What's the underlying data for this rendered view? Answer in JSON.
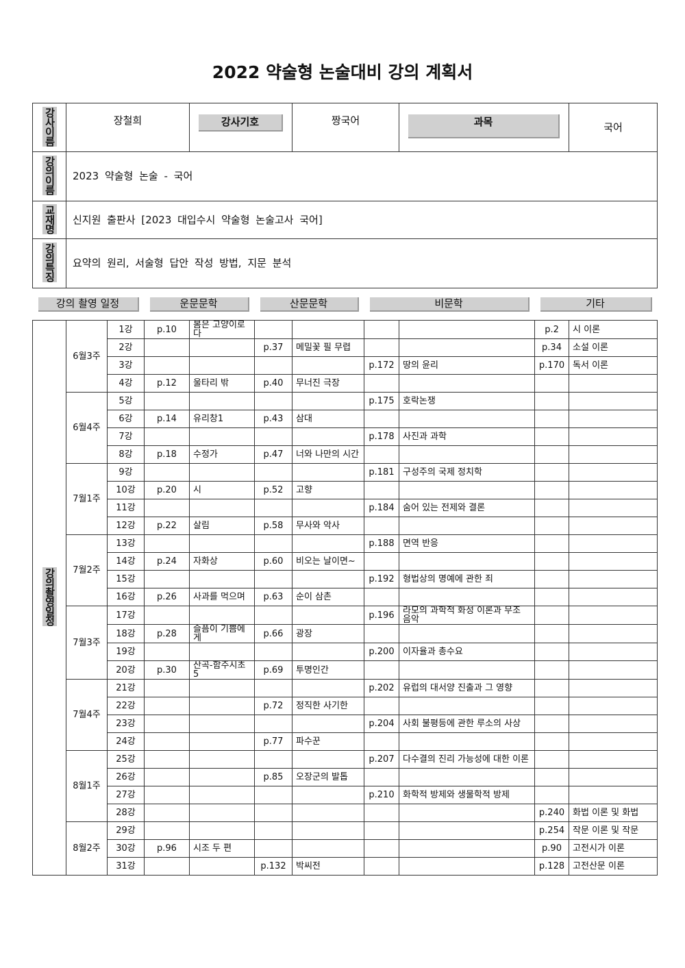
{
  "title": "2022 약술형 논술대비 강의 계획서",
  "info": {
    "instructor_label": "강사이름",
    "instructor": "장철희",
    "code_label": "강사기호",
    "code": "짱국어",
    "subject_label": "과목",
    "subject": "국어",
    "course_label": "강의이름",
    "course": "2023 약술형 논술 - 국어",
    "textbook_label": "교재명",
    "textbook": "신지원 출판사 [2023 대입수시 약술형 논술고사 국어]",
    "features_label": "강의특징",
    "features": "요약의 원리, 서술형 답안 작성 방법, 지문 분석"
  },
  "schedule": {
    "side_label": "강의촬영일정",
    "headers": [
      "강의 촬영 일정",
      "운문문학",
      "산문문학",
      "비문학",
      "기타"
    ],
    "weeks": [
      {
        "label": "6월3주",
        "lectures": [
          [
            "1강",
            "p.10",
            "봄은 고양이로다",
            null,
            null,
            null,
            null,
            "p.2",
            "시 이론"
          ],
          [
            "2강",
            null,
            null,
            "p.37",
            "메밀꽃 필 무렵",
            null,
            null,
            "p.34",
            "소설 이론"
          ],
          [
            "3강",
            null,
            null,
            null,
            null,
            "p.172",
            "땅의 윤리",
            "p.170",
            "독서 이론"
          ],
          [
            "4강",
            "p.12",
            "울타리 밖",
            "p.40",
            "무너진 극장",
            null,
            null,
            null,
            null
          ]
        ]
      },
      {
        "label": "6월4주",
        "lectures": [
          [
            "5강",
            null,
            null,
            null,
            null,
            "p.175",
            "호락논쟁",
            null,
            null
          ],
          [
            "6강",
            "p.14",
            "유리창1",
            "p.43",
            "삼대",
            null,
            null,
            null,
            null
          ],
          [
            "7강",
            null,
            null,
            null,
            null,
            "p.178",
            "사진과 과학",
            null,
            null
          ],
          [
            "8강",
            "p.18",
            "수정가",
            "p.47",
            "너와 나만의 시간",
            null,
            null,
            null,
            null
          ]
        ]
      },
      {
        "label": "7월1주",
        "lectures": [
          [
            "9강",
            null,
            null,
            null,
            null,
            "p.181",
            "구성주의 국제 정치학",
            null,
            null
          ],
          [
            "10강",
            "p.20",
            "시",
            "p.52",
            "고향",
            null,
            null,
            null,
            null
          ],
          [
            "11강",
            null,
            null,
            null,
            null,
            "p.184",
            "숨어 있는 전제와 결론",
            null,
            null
          ],
          [
            "12강",
            "p.22",
            "살림",
            "p.58",
            "무사와 악사",
            null,
            null,
            null,
            null
          ]
        ]
      },
      {
        "label": "7월2주",
        "lectures": [
          [
            "13강",
            null,
            null,
            null,
            null,
            "p.188",
            "면역 반응",
            null,
            null
          ],
          [
            "14강",
            "p.24",
            "자화상",
            "p.60",
            "비오는 날이면~",
            null,
            null,
            null,
            null
          ],
          [
            "15강",
            null,
            null,
            null,
            null,
            "p.192",
            "형법상의 명예에 관한 죄",
            null,
            null
          ],
          [
            "16강",
            "p.26",
            "사과를 먹으며",
            "p.63",
            "순이 삼촌",
            null,
            null,
            null,
            null
          ]
        ]
      },
      {
        "label": "7월3주",
        "lectures": [
          [
            "17강",
            null,
            null,
            null,
            null,
            "p.196",
            "라모의 과학적 화성 이론과 무조 음악",
            null,
            null
          ],
          [
            "18강",
            "p.28",
            "슬픔이 기쁨에게",
            "p.66",
            "광장",
            null,
            null,
            null,
            null
          ],
          [
            "19강",
            null,
            null,
            null,
            null,
            "p.200",
            "이자율과 총수요",
            null,
            null
          ],
          [
            "20강",
            "p.30",
            "산곡-함주시초5",
            "p.69",
            "투명인간",
            null,
            null,
            null,
            null
          ]
        ]
      },
      {
        "label": "7월4주",
        "lectures": [
          [
            "21강",
            null,
            null,
            null,
            null,
            "p.202",
            "유럽의 대서양 진출과 그 영향",
            null,
            null
          ],
          [
            "22강",
            null,
            null,
            "p.72",
            "정직한 사기한",
            null,
            null,
            null,
            null
          ],
          [
            "23강",
            null,
            null,
            null,
            null,
            "p.204",
            "사회 불평등에 관한 루소의 사상",
            null,
            null
          ],
          [
            "24강",
            null,
            null,
            "p.77",
            "파수꾼",
            null,
            null,
            null,
            null
          ]
        ]
      },
      {
        "label": "8월1주",
        "lectures": [
          [
            "25강",
            null,
            null,
            null,
            null,
            "p.207",
            "다수결의 진리 가능성에 대한 이론",
            null,
            null
          ],
          [
            "26강",
            null,
            null,
            "p.85",
            "오장군의 발톱",
            null,
            null,
            null,
            null
          ],
          [
            "27강",
            null,
            null,
            null,
            null,
            "p.210",
            "화학적 방제와 생물학적 방제",
            null,
            null
          ],
          [
            "28강",
            null,
            null,
            null,
            null,
            null,
            null,
            "p.240",
            "화법 이론 및 화법"
          ]
        ]
      },
      {
        "label": "8월2주",
        "lectures": [
          [
            "29강",
            null,
            null,
            null,
            null,
            null,
            null,
            "p.254",
            "작문 이론 및 작문"
          ],
          [
            "30강",
            "p.96",
            "시조 두 편",
            null,
            null,
            null,
            null,
            "p.90",
            "고전시가 이론"
          ],
          [
            "31강",
            null,
            null,
            "p.132",
            "박씨전",
            null,
            null,
            "p.128",
            "고전산문 이론"
          ]
        ]
      }
    ]
  }
}
